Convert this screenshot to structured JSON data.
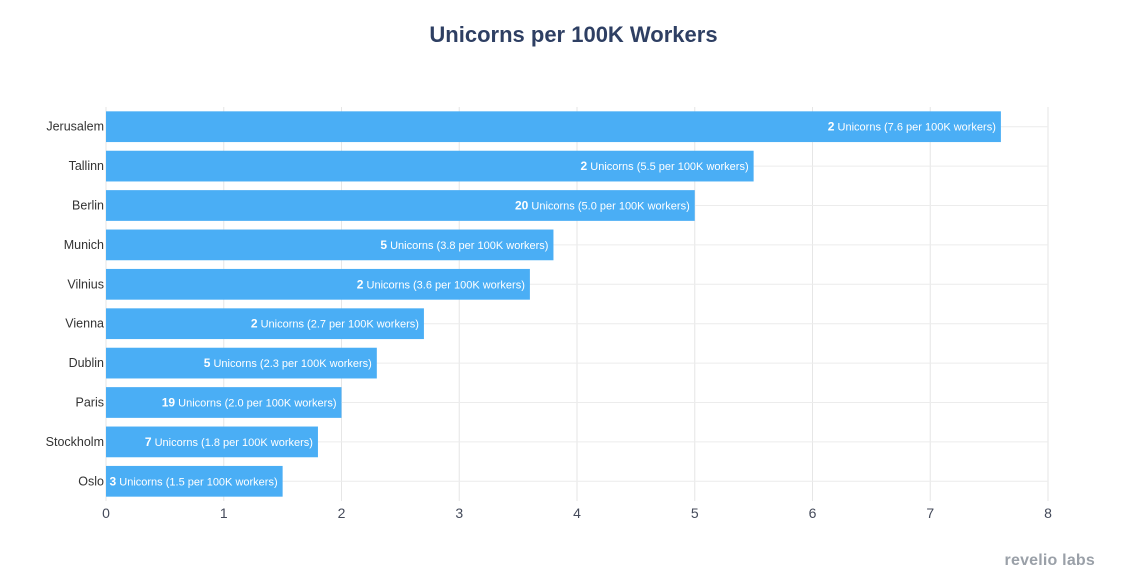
{
  "chart_data": {
    "type": "bar",
    "orientation": "horizontal",
    "title": "Unicorns per 100K Workers",
    "xlabel": "",
    "ylabel": "",
    "xlim": [
      0,
      8
    ],
    "x_ticks": [
      0,
      1,
      2,
      3,
      4,
      5,
      6,
      7,
      8
    ],
    "grid": true,
    "legend": "none",
    "bar_color": "#4aaef5",
    "categories": [
      "Jerusalem",
      "Tallinn",
      "Berlin",
      "Munich",
      "Vilnius",
      "Vienna",
      "Dublin",
      "Paris",
      "Stockholm",
      "Oslo"
    ],
    "values": [
      7.6,
      5.5,
      5.0,
      3.8,
      3.6,
      2.7,
      2.3,
      2.0,
      1.8,
      1.5
    ],
    "unicorn_counts": [
      2,
      2,
      20,
      5,
      2,
      2,
      5,
      19,
      7,
      3
    ],
    "data_labels": [
      {
        "count": "2",
        "text": "Unicorns (7.6 per 100K workers)"
      },
      {
        "count": "2",
        "text": "Unicorns (5.5 per 100K workers)"
      },
      {
        "count": "20",
        "text": "Unicorns (5.0 per 100K workers)"
      },
      {
        "count": "5",
        "text": "Unicorns (3.8 per 100K workers)"
      },
      {
        "count": "2",
        "text": "Unicorns (3.6 per 100K workers)"
      },
      {
        "count": "2",
        "text": "Unicorns (2.7 per 100K workers)"
      },
      {
        "count": "5",
        "text": "Unicorns (2.3 per 100K workers)"
      },
      {
        "count": "19",
        "text": "Unicorns (2.0 per 100K workers)"
      },
      {
        "count": "7",
        "text": "Unicorns (1.8 per 100K workers)"
      },
      {
        "count": "3",
        "text": "Unicorns (1.5 per 100K workers)"
      }
    ]
  },
  "watermark": "revelio labs"
}
